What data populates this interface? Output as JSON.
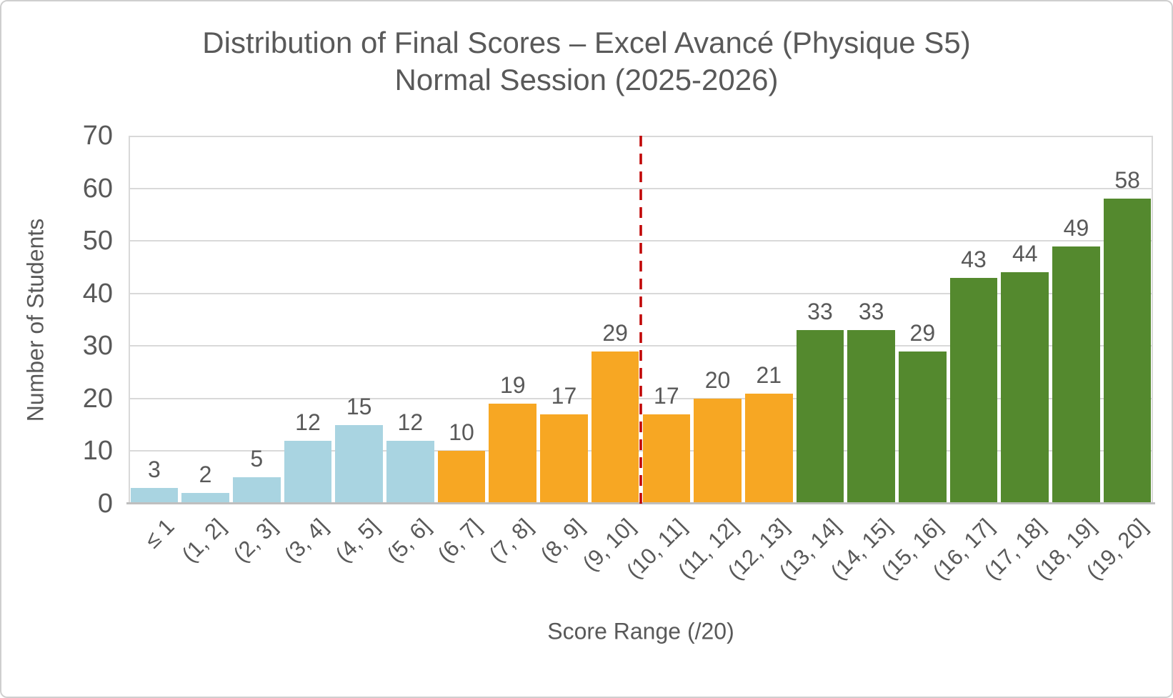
{
  "chart_data": {
    "type": "bar",
    "title_line1": "Distribution of Final Scores – Excel Avancé (Physique S5)",
    "title_line2": "Normal Session (2025-2026)",
    "xlabel": "Score Range (/20)",
    "ylabel": "Number of Students",
    "ylim": [
      0,
      70
    ],
    "yticks": [
      0,
      10,
      20,
      30,
      40,
      50,
      60,
      70
    ],
    "grid": true,
    "legend": false,
    "categories": [
      "≤ 1",
      "(1, 2]",
      "(2, 3]",
      "(3, 4]",
      "(4, 5]",
      "(5, 6]",
      "(6, 7]",
      "(7, 8]",
      "(8, 9]",
      "(9, 10]",
      "(10, 11]",
      "(11, 12]",
      "(12, 13]",
      "(13, 14]",
      "(14, 15]",
      "(15, 16]",
      "(16, 17]",
      "(17, 18]",
      "(18, 19]",
      "(19, 20]"
    ],
    "values": [
      3,
      2,
      5,
      12,
      15,
      12,
      10,
      19,
      17,
      29,
      17,
      20,
      21,
      33,
      33,
      29,
      43,
      44,
      49,
      58
    ],
    "bar_colors": [
      "#A9D4E1",
      "#A9D4E1",
      "#A9D4E1",
      "#A9D4E1",
      "#A9D4E1",
      "#A9D4E1",
      "#F7A723",
      "#F7A723",
      "#F7A723",
      "#F7A723",
      "#F7A723",
      "#F7A723",
      "#F7A723",
      "#54892E",
      "#54892E",
      "#54892E",
      "#54892E",
      "#54892E",
      "#54892E",
      "#54892E"
    ],
    "palette": {
      "light_blue": "#A9D4E1",
      "orange": "#F7A723",
      "green": "#54892E"
    },
    "threshold_line": {
      "at_score": 10,
      "after_category_index": 9,
      "orientation": "vertical",
      "style": "dashed",
      "color": "#C00000"
    },
    "gridline_color": "#D9D9D9",
    "axis_line_color": "#BFBFBF",
    "text_color": "#595959",
    "background_color": "#FFFFFF"
  }
}
